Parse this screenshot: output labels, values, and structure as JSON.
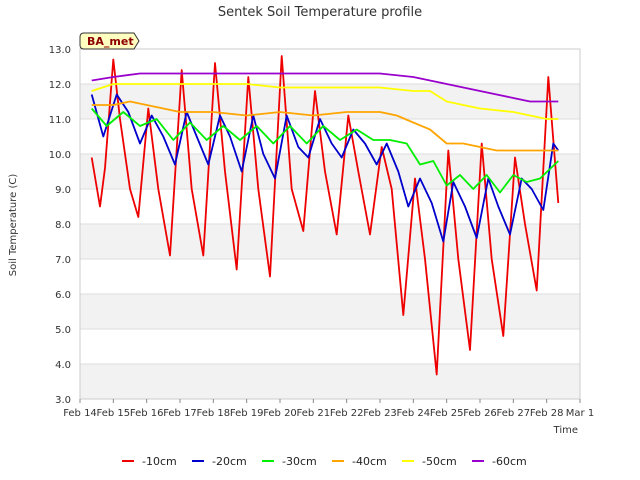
{
  "chart_data": {
    "type": "line",
    "title": "Sentek Soil Temperature profile",
    "xlabel": "Time",
    "ylabel": "Soil Temperature (C)",
    "badge": "BA_met",
    "ylim": [
      3.0,
      13.0
    ],
    "xlim": [
      0,
      15
    ],
    "yticks": [
      "3.0",
      "4.0",
      "5.0",
      "6.0",
      "7.0",
      "8.0",
      "9.0",
      "10.0",
      "11.0",
      "12.0",
      "13.0"
    ],
    "xticks": [
      "Feb 14",
      "Feb 15",
      "Feb 16",
      "Feb 17",
      "Feb 18",
      "Feb 19",
      "Feb 20",
      "Feb 21",
      "Feb 22",
      "Feb 23",
      "Feb 24",
      "Feb 25",
      "Feb 26",
      "Feb 27",
      "Feb 28",
      "Mar 1"
    ],
    "grid": true,
    "legend_position": "bottom",
    "series": [
      {
        "name": "-10cm",
        "color": "#ee0000",
        "points": [
          [
            0.35,
            9.9
          ],
          [
            0.6,
            8.5
          ],
          [
            0.75,
            9.6
          ],
          [
            1.0,
            12.7
          ],
          [
            1.2,
            11.0
          ],
          [
            1.5,
            9.0
          ],
          [
            1.75,
            8.2
          ],
          [
            2.05,
            11.3
          ],
          [
            2.35,
            9.0
          ],
          [
            2.7,
            7.1
          ],
          [
            3.05,
            12.4
          ],
          [
            3.35,
            9.0
          ],
          [
            3.7,
            7.1
          ],
          [
            4.05,
            12.6
          ],
          [
            4.35,
            9.5
          ],
          [
            4.7,
            6.7
          ],
          [
            5.05,
            12.2
          ],
          [
            5.35,
            9.0
          ],
          [
            5.7,
            6.5
          ],
          [
            6.05,
            12.8
          ],
          [
            6.35,
            9.0
          ],
          [
            6.7,
            7.8
          ],
          [
            7.05,
            11.8
          ],
          [
            7.35,
            9.5
          ],
          [
            7.7,
            7.7
          ],
          [
            8.05,
            11.1
          ],
          [
            8.35,
            9.5
          ],
          [
            8.7,
            7.7
          ],
          [
            9.05,
            10.2
          ],
          [
            9.35,
            9.0
          ],
          [
            9.7,
            5.4
          ],
          [
            10.05,
            9.3
          ],
          [
            10.35,
            7.0
          ],
          [
            10.7,
            3.7
          ],
          [
            11.05,
            10.1
          ],
          [
            11.35,
            7.0
          ],
          [
            11.7,
            4.4
          ],
          [
            12.05,
            10.3
          ],
          [
            12.35,
            7.0
          ],
          [
            12.7,
            4.8
          ],
          [
            13.05,
            9.9
          ],
          [
            13.35,
            8.0
          ],
          [
            13.7,
            6.1
          ],
          [
            14.05,
            12.2
          ],
          [
            14.35,
            8.6
          ]
        ]
      },
      {
        "name": "-20cm",
        "color": "#0000cc",
        "points": [
          [
            0.35,
            11.7
          ],
          [
            0.7,
            10.5
          ],
          [
            1.1,
            11.7
          ],
          [
            1.45,
            11.2
          ],
          [
            1.8,
            10.3
          ],
          [
            2.15,
            11.1
          ],
          [
            2.5,
            10.5
          ],
          [
            2.85,
            9.7
          ],
          [
            3.2,
            11.2
          ],
          [
            3.5,
            10.5
          ],
          [
            3.85,
            9.7
          ],
          [
            4.2,
            11.1
          ],
          [
            4.5,
            10.5
          ],
          [
            4.85,
            9.5
          ],
          [
            5.2,
            11.1
          ],
          [
            5.5,
            10.0
          ],
          [
            5.85,
            9.3
          ],
          [
            6.2,
            11.1
          ],
          [
            6.55,
            10.2
          ],
          [
            6.85,
            9.9
          ],
          [
            7.2,
            11.0
          ],
          [
            7.55,
            10.3
          ],
          [
            7.85,
            9.9
          ],
          [
            8.2,
            10.7
          ],
          [
            8.55,
            10.3
          ],
          [
            8.9,
            9.7
          ],
          [
            9.2,
            10.3
          ],
          [
            9.55,
            9.5
          ],
          [
            9.85,
            8.5
          ],
          [
            10.2,
            9.3
          ],
          [
            10.55,
            8.6
          ],
          [
            10.9,
            7.5
          ],
          [
            11.2,
            9.2
          ],
          [
            11.55,
            8.5
          ],
          [
            11.9,
            7.6
          ],
          [
            12.25,
            9.3
          ],
          [
            12.55,
            8.5
          ],
          [
            12.9,
            7.7
          ],
          [
            13.25,
            9.3
          ],
          [
            13.55,
            9.0
          ],
          [
            13.9,
            8.4
          ],
          [
            14.2,
            10.3
          ],
          [
            14.35,
            10.1
          ]
        ]
      },
      {
        "name": "-30cm",
        "color": "#00ee00",
        "points": [
          [
            0.35,
            11.3
          ],
          [
            0.8,
            10.8
          ],
          [
            1.3,
            11.2
          ],
          [
            1.8,
            10.8
          ],
          [
            2.3,
            11.0
          ],
          [
            2.8,
            10.4
          ],
          [
            3.3,
            10.9
          ],
          [
            3.8,
            10.4
          ],
          [
            4.3,
            10.8
          ],
          [
            4.8,
            10.4
          ],
          [
            5.3,
            10.8
          ],
          [
            5.8,
            10.3
          ],
          [
            6.3,
            10.8
          ],
          [
            6.8,
            10.3
          ],
          [
            7.3,
            10.8
          ],
          [
            7.8,
            10.4
          ],
          [
            8.3,
            10.7
          ],
          [
            8.8,
            10.4
          ],
          [
            9.3,
            10.4
          ],
          [
            9.8,
            10.3
          ],
          [
            10.2,
            9.7
          ],
          [
            10.6,
            9.8
          ],
          [
            11.0,
            9.1
          ],
          [
            11.4,
            9.4
          ],
          [
            11.8,
            9.0
          ],
          [
            12.2,
            9.4
          ],
          [
            12.6,
            8.9
          ],
          [
            13.0,
            9.4
          ],
          [
            13.4,
            9.2
          ],
          [
            13.8,
            9.3
          ],
          [
            14.35,
            9.8
          ]
        ]
      },
      {
        "name": "-40cm",
        "color": "#ffa500",
        "points": [
          [
            0.35,
            11.4
          ],
          [
            1.0,
            11.4
          ],
          [
            1.5,
            11.5
          ],
          [
            2.0,
            11.4
          ],
          [
            3.0,
            11.2
          ],
          [
            4.0,
            11.2
          ],
          [
            5.0,
            11.1
          ],
          [
            6.0,
            11.2
          ],
          [
            7.0,
            11.1
          ],
          [
            8.0,
            11.2
          ],
          [
            9.0,
            11.2
          ],
          [
            9.5,
            11.1
          ],
          [
            10.0,
            10.9
          ],
          [
            10.5,
            10.7
          ],
          [
            11.0,
            10.3
          ],
          [
            11.5,
            10.3
          ],
          [
            12.0,
            10.2
          ],
          [
            12.5,
            10.1
          ],
          [
            13.0,
            10.1
          ],
          [
            13.5,
            10.1
          ],
          [
            14.35,
            10.1
          ]
        ]
      },
      {
        "name": "-50cm",
        "color": "#ffff00",
        "points": [
          [
            0.35,
            11.8
          ],
          [
            1.0,
            12.0
          ],
          [
            2.0,
            12.0
          ],
          [
            3.0,
            12.0
          ],
          [
            4.0,
            12.0
          ],
          [
            5.0,
            12.0
          ],
          [
            6.0,
            11.9
          ],
          [
            7.0,
            11.9
          ],
          [
            8.0,
            11.9
          ],
          [
            9.0,
            11.9
          ],
          [
            10.0,
            11.8
          ],
          [
            10.5,
            11.8
          ],
          [
            11.0,
            11.5
          ],
          [
            11.5,
            11.4
          ],
          [
            12.0,
            11.3
          ],
          [
            13.0,
            11.2
          ],
          [
            13.5,
            11.1
          ],
          [
            14.0,
            11.0
          ],
          [
            14.35,
            11.0
          ]
        ]
      },
      {
        "name": "-60cm",
        "color": "#9900cc",
        "points": [
          [
            0.35,
            12.1
          ],
          [
            1.0,
            12.2
          ],
          [
            1.8,
            12.3
          ],
          [
            3.0,
            12.3
          ],
          [
            4.0,
            12.3
          ],
          [
            5.0,
            12.3
          ],
          [
            6.0,
            12.3
          ],
          [
            7.0,
            12.3
          ],
          [
            8.0,
            12.3
          ],
          [
            9.0,
            12.3
          ],
          [
            10.0,
            12.2
          ],
          [
            10.5,
            12.1
          ],
          [
            11.0,
            12.0
          ],
          [
            11.5,
            11.9
          ],
          [
            12.0,
            11.8
          ],
          [
            12.5,
            11.7
          ],
          [
            13.0,
            11.6
          ],
          [
            13.5,
            11.5
          ],
          [
            14.35,
            11.5
          ]
        ]
      }
    ]
  }
}
